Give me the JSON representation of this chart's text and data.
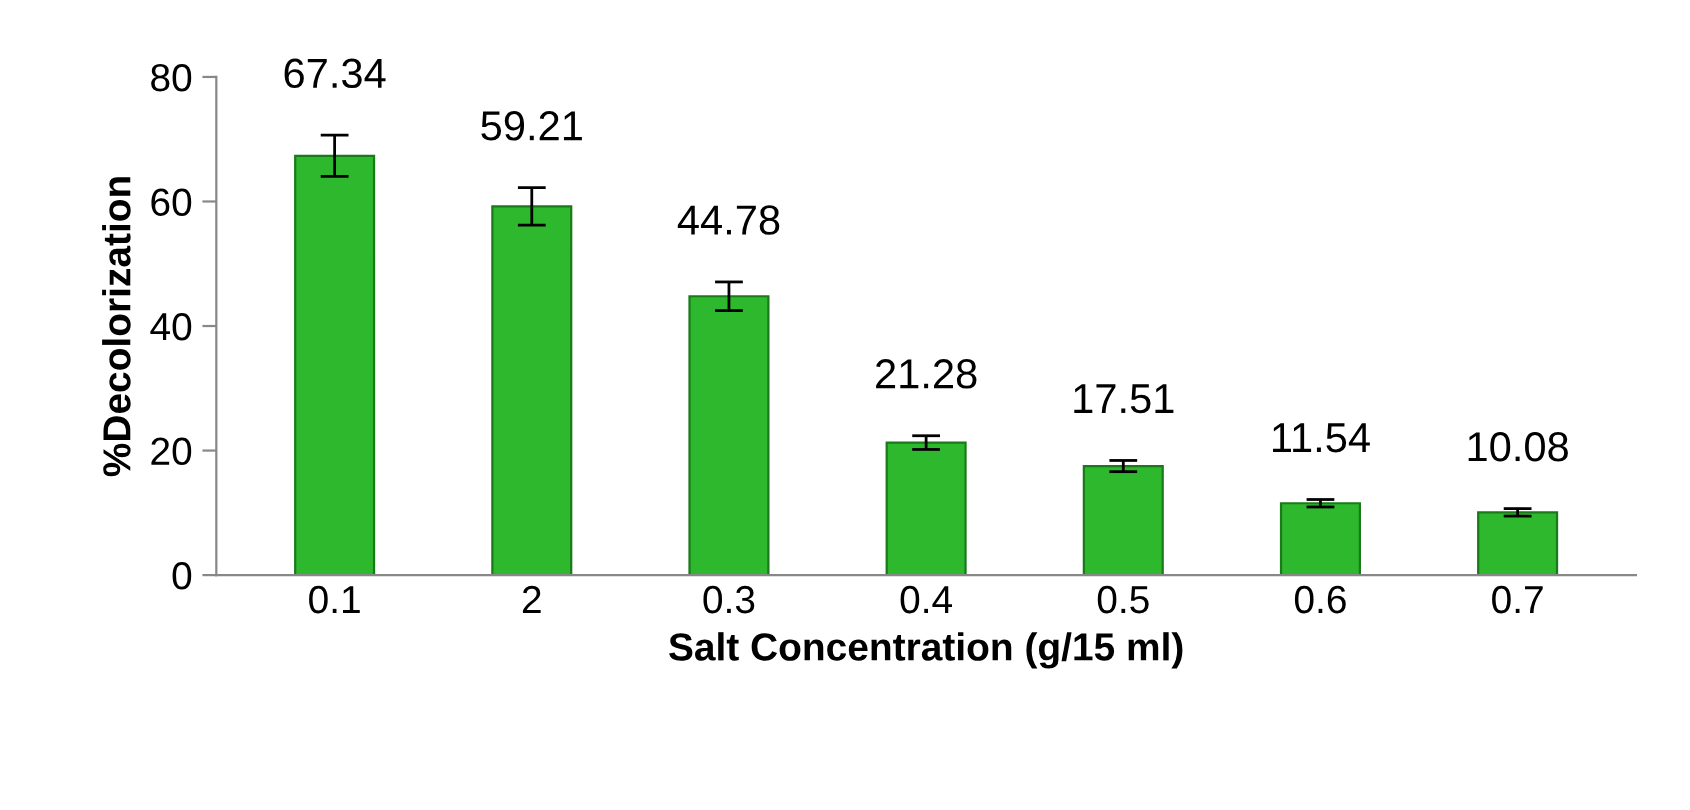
{
  "chart_data": {
    "type": "bar",
    "xlabel": "Salt Concentration (g/15 ml)",
    "ylabel": "%Decolorization",
    "categories": [
      "0.1",
      "2",
      "0.3",
      "0.4",
      "0.5",
      "0.6",
      "0.7"
    ],
    "values": [
      67.34,
      59.21,
      44.78,
      21.28,
      17.51,
      11.54,
      10.08
    ],
    "errors": [
      3.3,
      3.0,
      2.3,
      1.1,
      0.9,
      0.6,
      0.6
    ],
    "color": "#2db82d",
    "ylim": [
      0,
      80
    ],
    "yticks": [
      0,
      20,
      40,
      60,
      80
    ],
    "grid": false,
    "data_labels": true
  }
}
